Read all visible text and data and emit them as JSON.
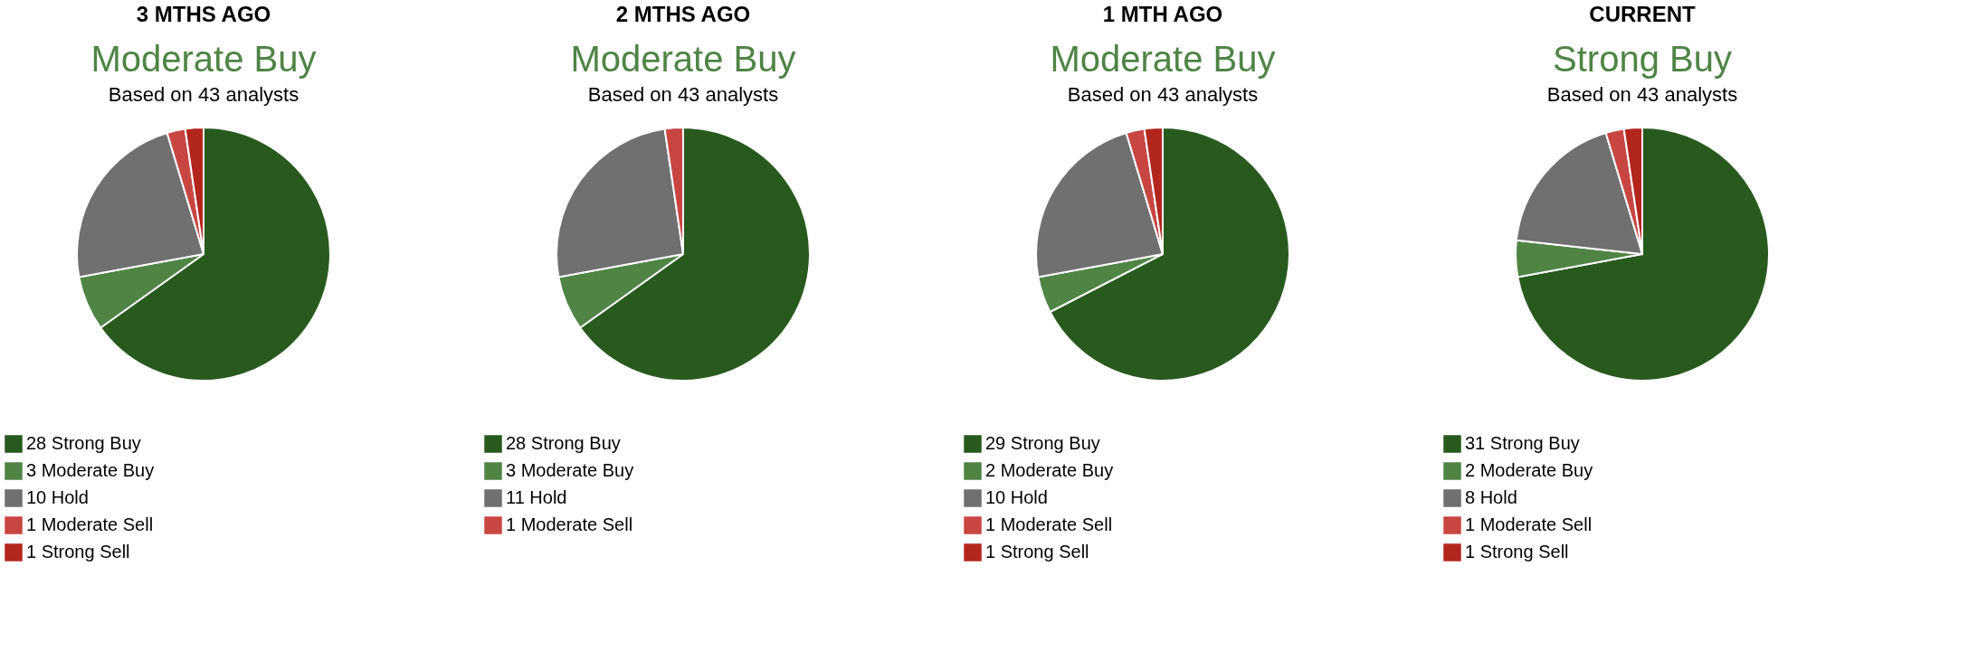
{
  "chart_data": [
    {
      "type": "pie",
      "title": "3 MTHS AGO",
      "subtitle": "Moderate Buy",
      "annotations": [
        "Based on 43 analysts"
      ],
      "categories": [
        "28 Strong Buy",
        "3 Moderate Buy",
        "10 Hold",
        "1 Moderate Sell",
        "1 Strong Sell"
      ],
      "values": [
        28,
        3,
        10,
        1,
        1
      ],
      "colors": [
        "#285a1e",
        "#4f8445",
        "#707070",
        "#c84642",
        "#b3261e"
      ],
      "legend": "bottom"
    },
    {
      "type": "pie",
      "title": "2 MTHS AGO",
      "subtitle": "Moderate Buy",
      "annotations": [
        "Based on 43 analysts"
      ],
      "categories": [
        "28 Strong Buy",
        "3 Moderate Buy",
        "11 Hold",
        "1 Moderate Sell"
      ],
      "values": [
        28,
        3,
        11,
        1
      ],
      "colors": [
        "#285a1e",
        "#4f8445",
        "#707070",
        "#c84642"
      ],
      "legend": "bottom"
    },
    {
      "type": "pie",
      "title": "1 MTH AGO",
      "subtitle": "Moderate Buy",
      "annotations": [
        "Based on 43 analysts"
      ],
      "categories": [
        "29 Strong Buy",
        "2 Moderate Buy",
        "10 Hold",
        "1 Moderate Sell",
        "1 Strong Sell"
      ],
      "values": [
        29,
        2,
        10,
        1,
        1
      ],
      "colors": [
        "#285a1e",
        "#4f8445",
        "#707070",
        "#c84642",
        "#b3261e"
      ],
      "legend": "bottom"
    },
    {
      "type": "pie",
      "title": "CURRENT",
      "subtitle": "Strong Buy",
      "annotations": [
        "Based on 43 analysts"
      ],
      "categories": [
        "31 Strong Buy",
        "2 Moderate Buy",
        "8 Hold",
        "1 Moderate Sell",
        "1 Strong Sell"
      ],
      "values": [
        31,
        2,
        8,
        1,
        1
      ],
      "colors": [
        "#285a1e",
        "#4f8445",
        "#707070",
        "#c84642",
        "#b3261e"
      ],
      "legend": "bottom"
    }
  ]
}
